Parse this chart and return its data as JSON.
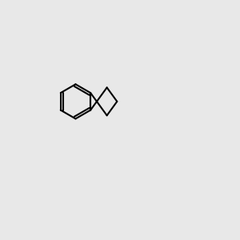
{
  "background_color": "#e8e8e8",
  "title": "",
  "figsize": [
    3.0,
    3.0
  ],
  "dpi": 100
}
